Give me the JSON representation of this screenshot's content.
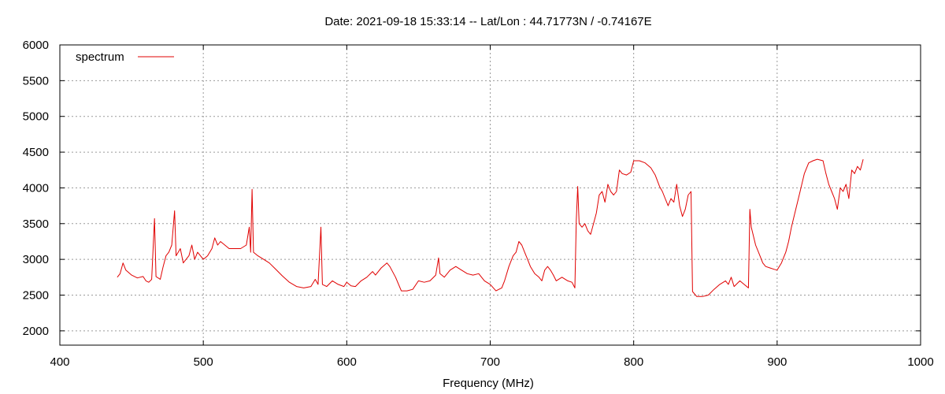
{
  "chart_data": {
    "type": "line",
    "title": "Date: 2021-09-18 15:33:14  --  Lat/Lon : 44.71773N / -0.74167E",
    "xlabel": "Frequency (MHz)",
    "ylabel": "",
    "xlim": [
      400,
      1000
    ],
    "ylim": [
      1800,
      6000
    ],
    "x_ticks": [
      400,
      500,
      600,
      700,
      800,
      900,
      1000
    ],
    "y_ticks": [
      2000,
      2500,
      3000,
      3500,
      4000,
      4500,
      5000,
      5500,
      6000
    ],
    "grid": true,
    "legend_position": "top-left",
    "series": [
      {
        "name": "spectrum",
        "color": "#e00000",
        "points": [
          [
            440,
            2750
          ],
          [
            442,
            2800
          ],
          [
            444,
            2950
          ],
          [
            446,
            2850
          ],
          [
            450,
            2780
          ],
          [
            454,
            2740
          ],
          [
            458,
            2760
          ],
          [
            460,
            2700
          ],
          [
            462,
            2680
          ],
          [
            464,
            2720
          ],
          [
            466,
            3570
          ],
          [
            467,
            2760
          ],
          [
            470,
            2720
          ],
          [
            472,
            2900
          ],
          [
            474,
            3050
          ],
          [
            476,
            3100
          ],
          [
            478,
            3200
          ],
          [
            480,
            3680
          ],
          [
            481,
            3050
          ],
          [
            484,
            3150
          ],
          [
            486,
            2950
          ],
          [
            488,
            3000
          ],
          [
            490,
            3050
          ],
          [
            492,
            3200
          ],
          [
            494,
            3000
          ],
          [
            496,
            3100
          ],
          [
            498,
            3050
          ],
          [
            500,
            3000
          ],
          [
            503,
            3050
          ],
          [
            506,
            3150
          ],
          [
            508,
            3300
          ],
          [
            510,
            3200
          ],
          [
            512,
            3250
          ],
          [
            515,
            3200
          ],
          [
            518,
            3150
          ],
          [
            522,
            3150
          ],
          [
            526,
            3150
          ],
          [
            530,
            3200
          ],
          [
            532,
            3450
          ],
          [
            533,
            3100
          ],
          [
            534,
            3980
          ],
          [
            535,
            3100
          ],
          [
            538,
            3050
          ],
          [
            542,
            3000
          ],
          [
            546,
            2950
          ],
          [
            550,
            2870
          ],
          [
            555,
            2770
          ],
          [
            560,
            2680
          ],
          [
            565,
            2620
          ],
          [
            570,
            2600
          ],
          [
            575,
            2620
          ],
          [
            578,
            2720
          ],
          [
            580,
            2650
          ],
          [
            582,
            3450
          ],
          [
            583,
            2650
          ],
          [
            586,
            2620
          ],
          [
            590,
            2700
          ],
          [
            594,
            2650
          ],
          [
            598,
            2620
          ],
          [
            600,
            2680
          ],
          [
            603,
            2630
          ],
          [
            606,
            2620
          ],
          [
            610,
            2700
          ],
          [
            614,
            2750
          ],
          [
            618,
            2830
          ],
          [
            620,
            2780
          ],
          [
            624,
            2880
          ],
          [
            628,
            2950
          ],
          [
            630,
            2900
          ],
          [
            634,
            2750
          ],
          [
            638,
            2560
          ],
          [
            642,
            2560
          ],
          [
            646,
            2580
          ],
          [
            650,
            2700
          ],
          [
            654,
            2680
          ],
          [
            658,
            2700
          ],
          [
            662,
            2780
          ],
          [
            664,
            3020
          ],
          [
            665,
            2800
          ],
          [
            668,
            2750
          ],
          [
            672,
            2850
          ],
          [
            676,
            2900
          ],
          [
            680,
            2850
          ],
          [
            684,
            2800
          ],
          [
            688,
            2780
          ],
          [
            692,
            2800
          ],
          [
            696,
            2700
          ],
          [
            700,
            2650
          ],
          [
            704,
            2560
          ],
          [
            708,
            2600
          ],
          [
            710,
            2700
          ],
          [
            713,
            2900
          ],
          [
            716,
            3050
          ],
          [
            718,
            3100
          ],
          [
            720,
            3250
          ],
          [
            722,
            3200
          ],
          [
            724,
            3100
          ],
          [
            726,
            3000
          ],
          [
            728,
            2900
          ],
          [
            731,
            2800
          ],
          [
            734,
            2750
          ],
          [
            736,
            2700
          ],
          [
            738,
            2850
          ],
          [
            740,
            2900
          ],
          [
            742,
            2850
          ],
          [
            744,
            2780
          ],
          [
            746,
            2700
          ],
          [
            750,
            2750
          ],
          [
            754,
            2700
          ],
          [
            757,
            2680
          ],
          [
            759,
            2600
          ],
          [
            760,
            3550
          ],
          [
            761,
            4020
          ],
          [
            762,
            3500
          ],
          [
            764,
            3450
          ],
          [
            766,
            3500
          ],
          [
            768,
            3400
          ],
          [
            770,
            3350
          ],
          [
            772,
            3500
          ],
          [
            774,
            3650
          ],
          [
            776,
            3900
          ],
          [
            778,
            3950
          ],
          [
            780,
            3800
          ],
          [
            782,
            4050
          ],
          [
            784,
            3950
          ],
          [
            786,
            3900
          ],
          [
            788,
            3950
          ],
          [
            790,
            4250
          ],
          [
            792,
            4200
          ],
          [
            795,
            4180
          ],
          [
            798,
            4220
          ],
          [
            800,
            4380
          ],
          [
            804,
            4380
          ],
          [
            808,
            4350
          ],
          [
            812,
            4280
          ],
          [
            815,
            4180
          ],
          [
            818,
            4020
          ],
          [
            820,
            3950
          ],
          [
            822,
            3850
          ],
          [
            824,
            3750
          ],
          [
            826,
            3850
          ],
          [
            828,
            3800
          ],
          [
            830,
            4050
          ],
          [
            832,
            3750
          ],
          [
            834,
            3600
          ],
          [
            836,
            3700
          ],
          [
            838,
            3900
          ],
          [
            840,
            3950
          ],
          [
            841,
            2550
          ],
          [
            844,
            2480
          ],
          [
            848,
            2480
          ],
          [
            852,
            2500
          ],
          [
            856,
            2580
          ],
          [
            860,
            2650
          ],
          [
            864,
            2700
          ],
          [
            866,
            2650
          ],
          [
            868,
            2750
          ],
          [
            870,
            2620
          ],
          [
            874,
            2700
          ],
          [
            877,
            2650
          ],
          [
            880,
            2600
          ],
          [
            881,
            3700
          ],
          [
            882,
            3450
          ],
          [
            885,
            3200
          ],
          [
            888,
            3050
          ],
          [
            890,
            2950
          ],
          [
            892,
            2900
          ],
          [
            895,
            2880
          ],
          [
            898,
            2860
          ],
          [
            900,
            2850
          ],
          [
            903,
            2950
          ],
          [
            906,
            3100
          ],
          [
            908,
            3250
          ],
          [
            910,
            3450
          ],
          [
            913,
            3700
          ],
          [
            916,
            3950
          ],
          [
            919,
            4200
          ],
          [
            922,
            4350
          ],
          [
            925,
            4380
          ],
          [
            928,
            4400
          ],
          [
            932,
            4380
          ],
          [
            934,
            4200
          ],
          [
            936,
            4050
          ],
          [
            938,
            3950
          ],
          [
            940,
            3850
          ],
          [
            942,
            3700
          ],
          [
            944,
            4000
          ],
          [
            946,
            3950
          ],
          [
            948,
            4050
          ],
          [
            950,
            3850
          ],
          [
            952,
            4250
          ],
          [
            954,
            4200
          ],
          [
            956,
            4300
          ],
          [
            958,
            4250
          ],
          [
            960,
            4400
          ]
        ]
      }
    ]
  }
}
